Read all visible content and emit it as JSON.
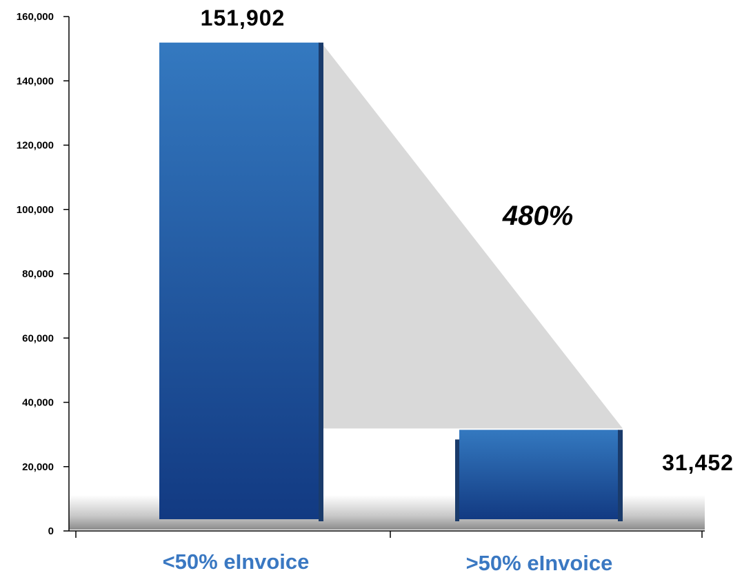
{
  "chart_data": {
    "type": "bar",
    "categories": [
      "<50% eInvoice",
      ">50% eInvoice"
    ],
    "values": [
      151902,
      31452
    ],
    "value_labels": [
      "151,902",
      "31,452"
    ],
    "annotation": "480%",
    "ylim": [
      0,
      160000
    ],
    "yticks": [
      0,
      20000,
      40000,
      60000,
      80000,
      100000,
      120000,
      140000,
      160000
    ],
    "ytick_labels": [
      "0",
      "20,000",
      "40,000",
      "60,000",
      "80,000",
      "100,000",
      "120,000",
      "140,000",
      "160,000"
    ],
    "title": "",
    "xlabel": "",
    "ylabel": "",
    "grid": false,
    "legend": "none"
  },
  "colors": {
    "bar_top": "#3479c0",
    "bar_bottom": "#123a82",
    "bar_edge": "#1a3b6b",
    "category_text": "#3a78c2",
    "connector": "#d9d9d9",
    "floor": "#8c8c8c"
  }
}
